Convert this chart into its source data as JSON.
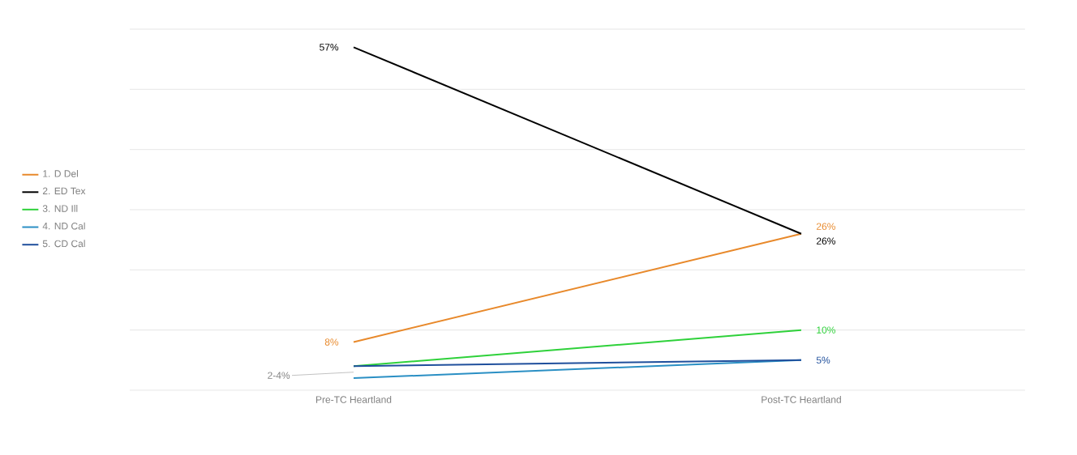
{
  "chart_data": {
    "type": "line",
    "categories": [
      "Pre-TC Heartland",
      "Post-TC Heartland"
    ],
    "series": [
      {
        "name": "1. D Del",
        "color": "#e8892b",
        "values": [
          8,
          26
        ],
        "value_labels": [
          "8%",
          "26%"
        ]
      },
      {
        "name": "2. ED Tex",
        "color": "#000000",
        "values": [
          57,
          26
        ],
        "value_labels": [
          "57%",
          "26%"
        ]
      },
      {
        "name": "3. ND Ill",
        "color": "#2ed13a",
        "values": [
          4,
          10
        ],
        "value_labels": [
          null,
          "10%"
        ]
      },
      {
        "name": "4. ND Cal",
        "color": "#2a8fc4",
        "values": [
          2,
          5
        ]
      },
      {
        "name": "5. CD Cal",
        "color": "#1f4f9c",
        "values": [
          4,
          5
        ],
        "value_labels": [
          null,
          "5%"
        ]
      }
    ],
    "annotations": [
      {
        "text": "2-4%",
        "x": "Pre-TC Heartland",
        "y": 3
      }
    ],
    "ylim": [
      0,
      60
    ],
    "yticks": [
      {
        "value": 0,
        "label": null
      },
      {
        "value": 10,
        "label": null
      },
      {
        "value": 20,
        "label": null
      },
      {
        "value": 30,
        "label": null
      },
      {
        "value": 40,
        "label": null
      },
      {
        "value": 50,
        "label": null
      },
      {
        "value": 60,
        "label": null
      }
    ],
    "tick_labels": "x",
    "grid": "y",
    "legend": "left",
    "marker": "none",
    "line_style": "solid"
  }
}
